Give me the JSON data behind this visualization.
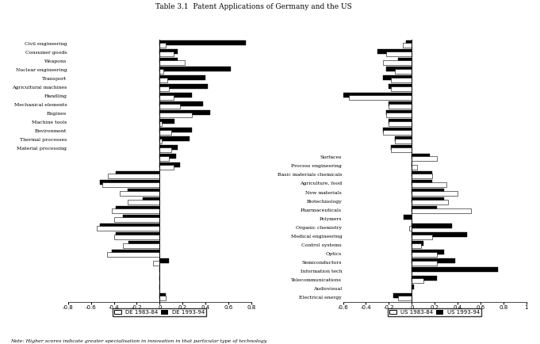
{
  "de_categories": [
    "Civil engineering",
    "Consumer goods",
    "Weapons",
    "Nuclear engineering",
    "Transport",
    "Agricultural machines",
    "Handling",
    "Mechanical elements",
    "Engines",
    "Machine tools",
    "Environment",
    "Thermal processes",
    "Material processing",
    "",
    "",
    "",
    "",
    "",
    "",
    "",
    "",
    "",
    "",
    "",
    "",
    "",
    "",
    "",
    "",
    ""
  ],
  "de_83": [
    0.05,
    0.12,
    0.22,
    0.03,
    0.07,
    0.08,
    0.12,
    0.18,
    0.28,
    0.02,
    0.1,
    0.02,
    0.1,
    0.08,
    0.12,
    -0.45,
    -0.5,
    -0.35,
    -0.28,
    -0.42,
    -0.4,
    -0.55,
    -0.4,
    -0.32,
    -0.46,
    -0.06,
    0.0,
    0.0,
    0.0,
    0.05
  ],
  "de_93": [
    0.75,
    0.16,
    0.16,
    0.62,
    0.4,
    0.42,
    0.28,
    0.38,
    0.44,
    0.13,
    0.28,
    0.26,
    0.16,
    0.14,
    0.18,
    -0.38,
    -0.52,
    -0.28,
    -0.15,
    -0.38,
    -0.32,
    -0.52,
    -0.38,
    -0.27,
    -0.42,
    0.08,
    0.0,
    0.0,
    0.0,
    0.05
  ],
  "us_categories": [
    "",
    "",
    "",
    "",
    "",
    "",
    "",
    "",
    "",
    "",
    "",
    "",
    "",
    "Surfaces",
    "Process engineering",
    "Basic materials chemicals",
    "Agriculture, food",
    "New materials",
    "Biotechnology",
    "Pharmaceuticals",
    "Polymers",
    "Organic chemistry",
    "Medical engineering",
    "Control systems",
    "Optics",
    "Semiconductors",
    "Information tech",
    "Telecommunications",
    "Audiovisual",
    "Electrical energy"
  ],
  "us_83": [
    -0.08,
    -0.22,
    -0.25,
    -0.15,
    -0.18,
    -0.18,
    -0.55,
    -0.2,
    -0.22,
    -0.2,
    -0.25,
    -0.15,
    -0.18,
    0.22,
    0.05,
    0.18,
    0.3,
    0.4,
    0.32,
    0.52,
    0.0,
    -0.02,
    0.18,
    0.08,
    0.22,
    0.22,
    0.0,
    0.1,
    0.0,
    -0.12
  ],
  "us_93": [
    -0.05,
    -0.3,
    -0.12,
    -0.22,
    -0.25,
    -0.2,
    -0.6,
    -0.2,
    -0.22,
    -0.2,
    -0.25,
    -0.15,
    -0.18,
    0.16,
    0.0,
    0.18,
    0.18,
    0.28,
    0.28,
    0.22,
    -0.07,
    0.35,
    0.48,
    0.1,
    0.28,
    0.38,
    0.75,
    0.22,
    0.02,
    -0.16
  ],
  "de_xlim": [
    -0.8,
    0.8
  ],
  "de_xticks": [
    -0.8,
    -0.6,
    -0.4,
    -0.2,
    0,
    0.2,
    0.4,
    0.6,
    0.8
  ],
  "de_xticklabels": [
    "-0.8",
    "-0.6",
    "-0.4",
    "-0.2",
    "0",
    "0.2",
    "0.4",
    "0.6",
    "0.8"
  ],
  "us_xlim": [
    -0.6,
    1.0
  ],
  "us_xticks": [
    -0.6,
    "-0.4",
    -0.2,
    0,
    0.2,
    0.4,
    0.6,
    0.8,
    1.0
  ],
  "us_xticklabels": [
    "-0.6",
    "-0.4",
    "-0.2",
    "0",
    "0.2",
    "0.4",
    "0.6",
    "0.8",
    "1"
  ],
  "de_legend": [
    "DE 1983-84",
    "DE 1993-94"
  ],
  "us_legend": [
    "US 1983-84",
    "US 1993-94"
  ],
  "title": "Table 3.1  Patent Applications of Germany and the US",
  "note": "Note: Higher scores indicate greater specialisation in innovation in that particular type of technology."
}
